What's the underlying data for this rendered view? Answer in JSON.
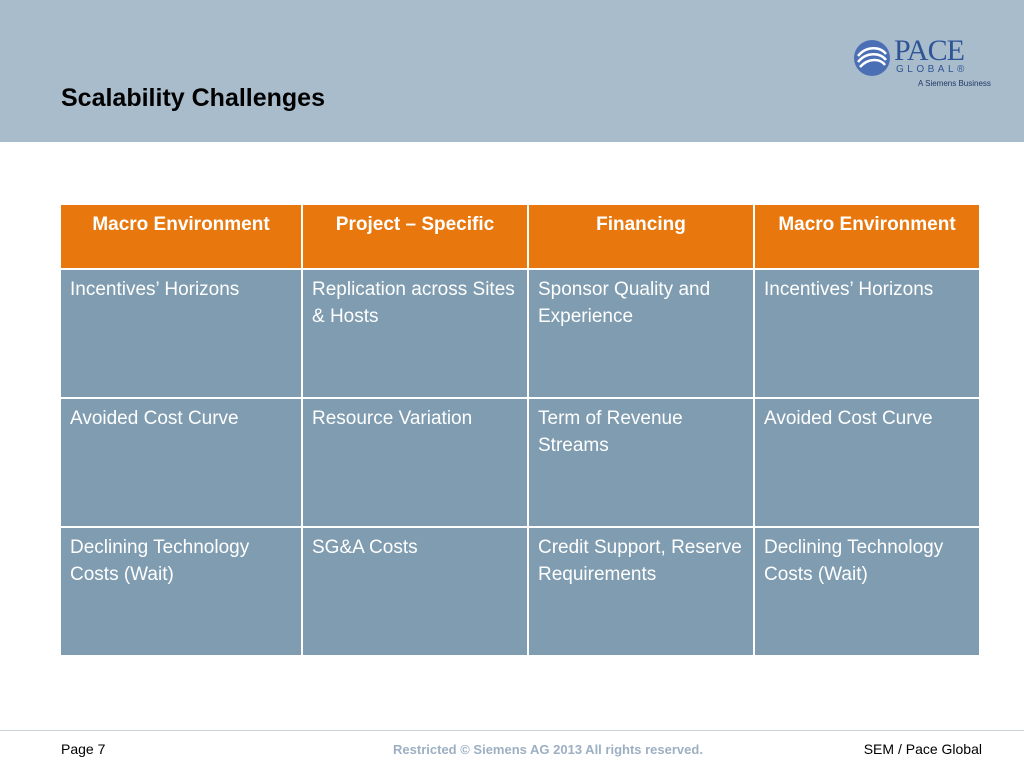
{
  "header": {
    "title": "Scalability Challenges",
    "logo": {
      "name": "PACE",
      "sub": "GLOBAL®",
      "tagline": "A Siemens Business"
    }
  },
  "table": {
    "columns": [
      "Macro Environment",
      "Project – Specific",
      "Financing",
      "Macro Environment"
    ],
    "rows": [
      [
        "Incentives’ Horizons",
        "Replication across Sites & Hosts",
        "Sponsor Quality and Experience",
        "Incentives’ Horizons"
      ],
      [
        "Avoided Cost Curve",
        "Resource Variation",
        "Term of Revenue Streams",
        "Avoided Cost Curve"
      ],
      [
        "Declining Technology Costs (Wait)",
        "SG&A Costs",
        "Credit Support, Reserve Requirements",
        "Declining Technology Costs (Wait)"
      ]
    ]
  },
  "footer": {
    "page": "Page 7",
    "notice": "Restricted © Siemens AG 2013 All rights reserved.",
    "source": "SEM / Pace Global"
  }
}
